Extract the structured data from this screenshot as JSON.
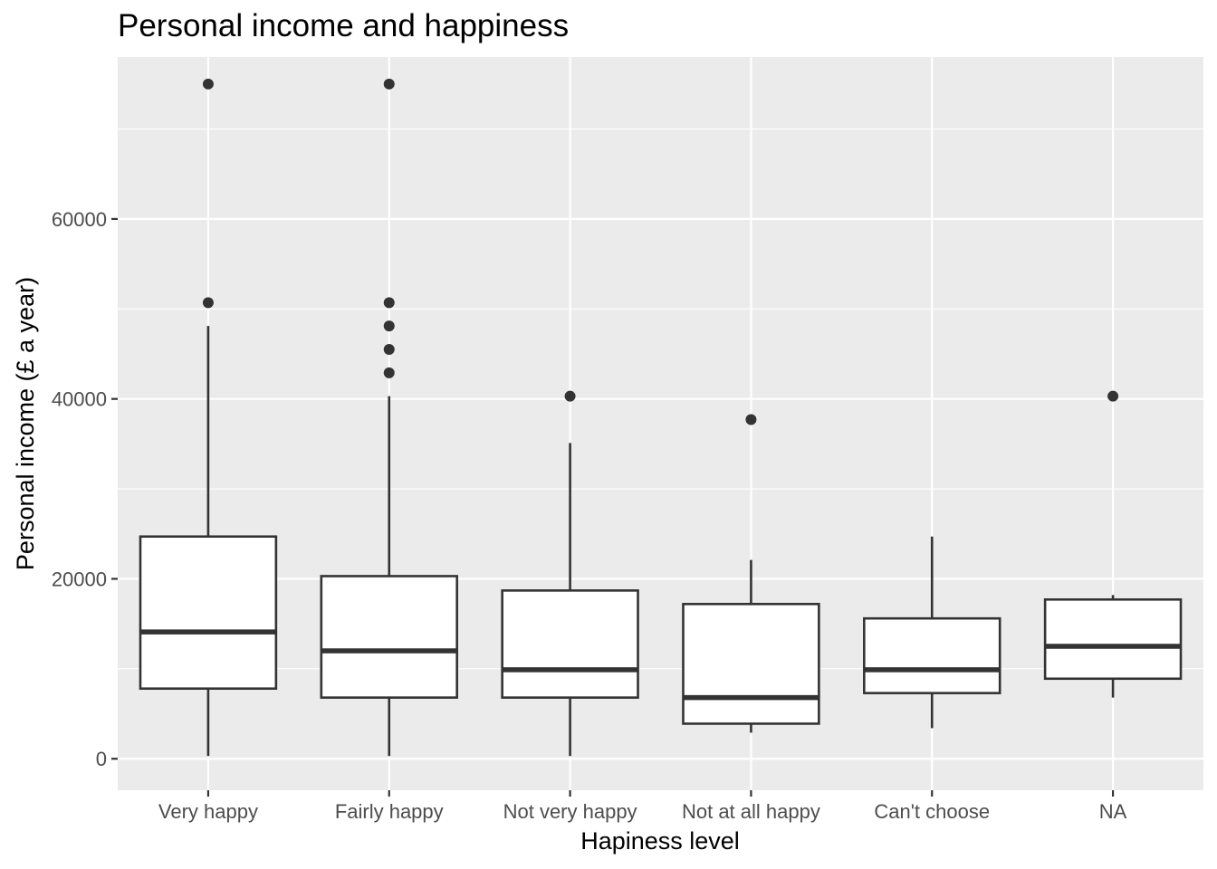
{
  "chart_data": {
    "type": "boxplot",
    "title": "Personal income and happiness",
    "xlabel": "Hapiness level",
    "ylabel": "Personal income (£ a year)",
    "ylim": [
      -3500,
      78000
    ],
    "yticks": [
      0,
      20000,
      40000,
      60000
    ],
    "ytick_labels": [
      "0",
      "20000",
      "40000",
      "60000"
    ],
    "grid": true,
    "legend": "none",
    "colors": {
      "panel": "#ebebeb",
      "grid": "#ffffff",
      "box_stroke": "#333333",
      "box_fill": "#ffffff",
      "outlier": "#333333"
    },
    "categories": [
      "Very happy",
      "Fairly happy",
      "Not very happy",
      "Not at all happy",
      "Can't choose",
      "NA"
    ],
    "boxes": [
      {
        "category": "Very happy",
        "min": 300,
        "q1": 7800,
        "median": 14100,
        "q3": 24700,
        "max": 48100,
        "outliers": [
          50700,
          75000
        ]
      },
      {
        "category": "Fairly happy",
        "min": 300,
        "q1": 6800,
        "median": 12000,
        "q3": 20300,
        "max": 40300,
        "outliers": [
          42900,
          45500,
          48100,
          50700,
          75000
        ]
      },
      {
        "category": "Not very happy",
        "min": 300,
        "q1": 6800,
        "median": 9900,
        "q3": 18700,
        "max": 35100,
        "outliers": [
          40300
        ]
      },
      {
        "category": "Not at all happy",
        "min": 2900,
        "q1": 3900,
        "median": 6800,
        "q3": 17200,
        "max": 22100,
        "outliers": [
          37700
        ]
      },
      {
        "category": "Can't choose",
        "min": 3400,
        "q1": 7300,
        "median": 9900,
        "q3": 15600,
        "max": 24700,
        "outliers": []
      },
      {
        "category": "NA",
        "min": 6800,
        "q1": 8900,
        "median": 12500,
        "q3": 17700,
        "max": 18200,
        "outliers": [
          40300
        ]
      }
    ]
  }
}
